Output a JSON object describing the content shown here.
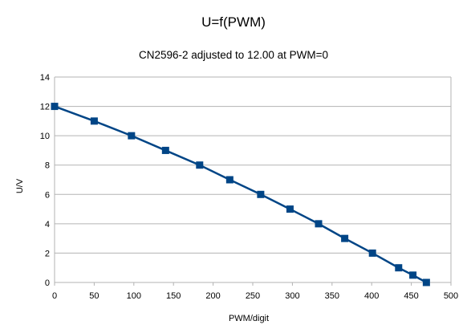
{
  "chart_data": {
    "type": "line",
    "title": "U=f(PWM)",
    "subtitle": "CN2596-2 adjusted to 12.00 at PWM=0",
    "xlabel": "PWM/digit",
    "ylabel": "U/V",
    "xlim": [
      0,
      500
    ],
    "ylim": [
      0,
      14
    ],
    "xticks": [
      "0",
      "50",
      "100",
      "150",
      "200",
      "250",
      "300",
      "350",
      "400",
      "450",
      "500"
    ],
    "yticks": [
      "0",
      "2",
      "4",
      "6",
      "8",
      "10",
      "12",
      "14"
    ],
    "grid": true,
    "legend": "none",
    "series": [
      {
        "color": "#004586",
        "marker": "square",
        "points": [
          {
            "x": 0,
            "y": 12
          },
          {
            "x": 50,
            "y": 11
          },
          {
            "x": 97,
            "y": 10
          },
          {
            "x": 140,
            "y": 9
          },
          {
            "x": 183,
            "y": 8
          },
          {
            "x": 221,
            "y": 7
          },
          {
            "x": 260,
            "y": 6
          },
          {
            "x": 297,
            "y": 5
          },
          {
            "x": 333,
            "y": 4
          },
          {
            "x": 366,
            "y": 3
          },
          {
            "x": 401,
            "y": 2
          },
          {
            "x": 434,
            "y": 1
          },
          {
            "x": 452,
            "y": 0.5
          },
          {
            "x": 469,
            "y": 0
          }
        ]
      }
    ]
  }
}
